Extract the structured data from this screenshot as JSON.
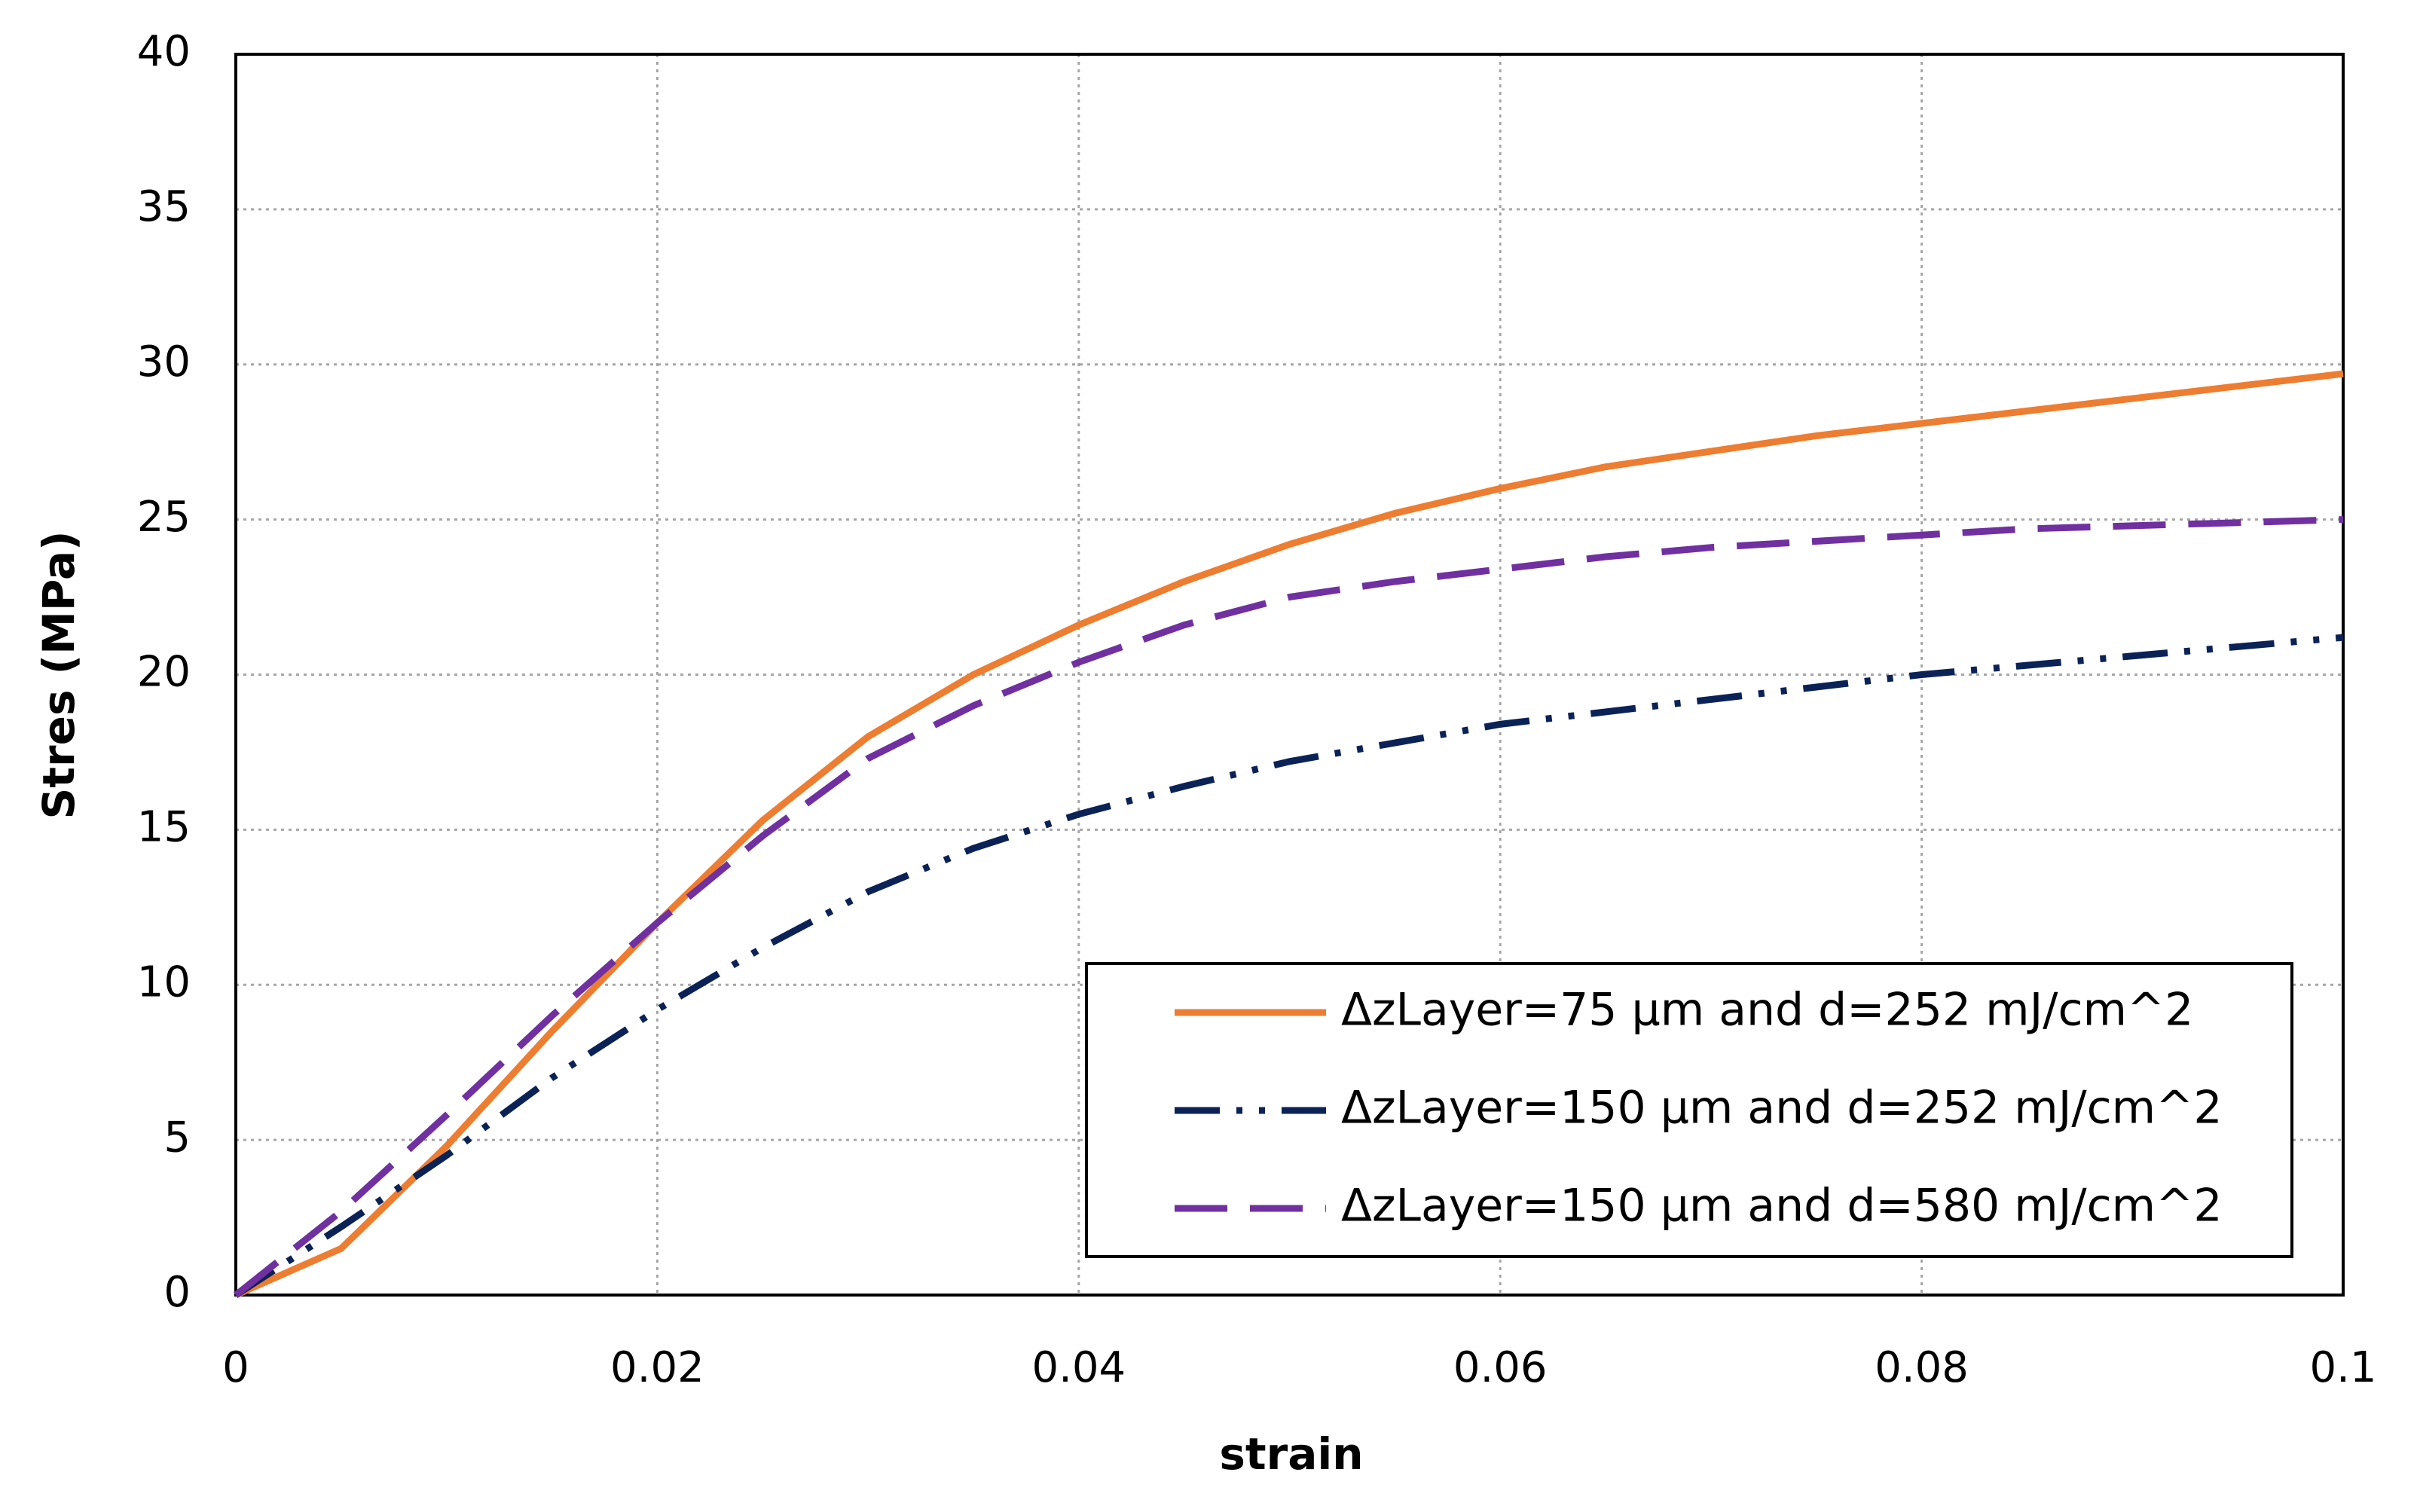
{
  "chart_data": {
    "type": "line",
    "xlabel": "strain",
    "ylabel": "Stres (MPa)",
    "x": [
      0,
      0.005,
      0.01,
      0.015,
      0.02,
      0.025,
      0.03,
      0.035,
      0.04,
      0.045,
      0.05,
      0.055,
      0.06,
      0.065,
      0.07,
      0.075,
      0.08,
      0.085,
      0.09,
      0.095,
      0.1
    ],
    "series": [
      {
        "name": "ΔzLayer=75 µm and d=252 mJ/cm^2",
        "color": "#ed7d31",
        "values": [
          0,
          1.5,
          4.8,
          8.5,
          12,
          15.3,
          18,
          20,
          21.6,
          23,
          24.2,
          25.2,
          26,
          26.7,
          27.2,
          27.7,
          28.1,
          28.5,
          28.9,
          29.3,
          29.7
        ]
      },
      {
        "name": "ΔzLayer=150 µm and d=252 mJ/cm^2",
        "color": "#0b2256",
        "values": [
          0,
          2.2,
          4.5,
          7,
          9.2,
          11.2,
          13,
          14.4,
          15.5,
          16.4,
          17.2,
          17.8,
          18.4,
          18.8,
          19.2,
          19.6,
          20,
          20.3,
          20.6,
          20.9,
          21.2
        ]
      },
      {
        "name": "ΔzLayer=150 µm and d=580 mJ/cm^2",
        "color": "#7030a0",
        "values": [
          0,
          2.7,
          5.8,
          9,
          12,
          14.8,
          17.3,
          19,
          20.4,
          21.6,
          22.5,
          23,
          23.4,
          23.8,
          24.1,
          24.3,
          24.5,
          24.7,
          24.8,
          24.9,
          25
        ]
      }
    ],
    "xlim": [
      0,
      0.1
    ],
    "xticks": [
      0,
      0.02,
      0.04,
      0.06,
      0.08,
      0.1
    ],
    "ylim": [
      0,
      40
    ],
    "yticks": [
      0,
      5,
      10,
      15,
      20,
      25,
      30,
      35,
      40
    ],
    "grid": true,
    "legend": "lower right"
  }
}
